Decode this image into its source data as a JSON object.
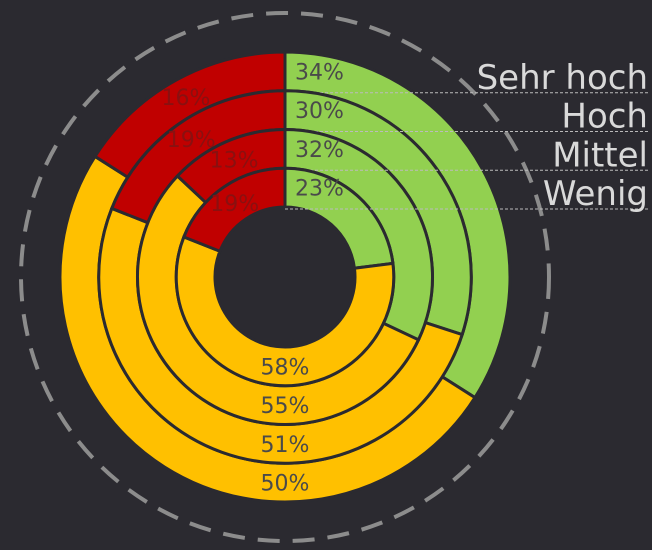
{
  "chart_data": {
    "type": "donut",
    "colors": [
      "#92d050",
      "#ffc000",
      "#c00000"
    ],
    "series": [
      {
        "name": "Sehr hoch",
        "values": [
          34,
          50,
          16
        ],
        "value_labels": [
          "34%",
          "50%",
          "16%"
        ]
      },
      {
        "name": "Hoch",
        "values": [
          30,
          51,
          19
        ],
        "value_labels": [
          "30%",
          "51%",
          "19%"
        ]
      },
      {
        "name": "Mittel",
        "values": [
          32,
          55,
          13
        ],
        "value_labels": [
          "32%",
          "55%",
          "13%"
        ]
      },
      {
        "name": "Wenig",
        "values": [
          23,
          58,
          19
        ],
        "value_labels": [
          "23%",
          "58%",
          "19%"
        ]
      }
    ]
  }
}
